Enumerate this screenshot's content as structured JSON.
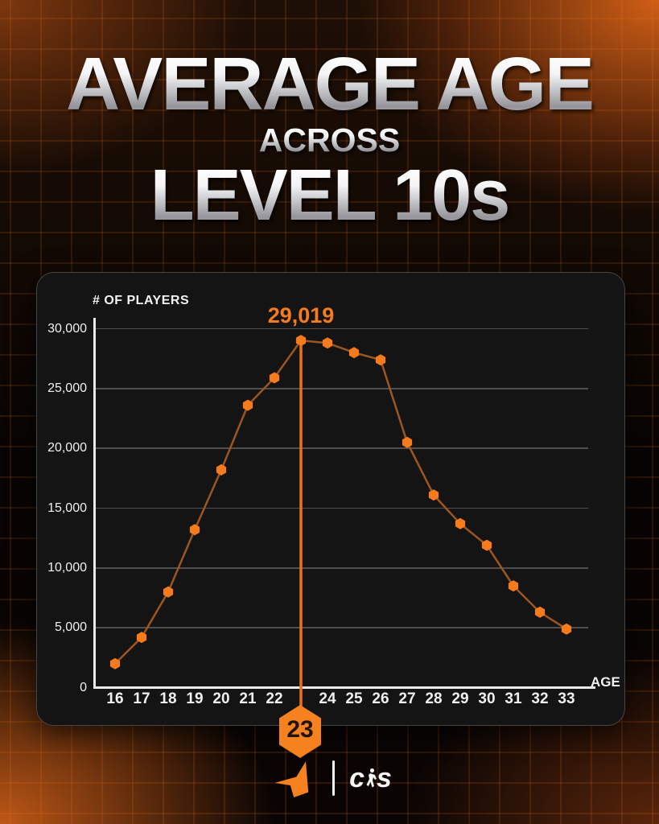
{
  "header": {
    "line1": "AVERAGE AGE",
    "line2": "ACROSS",
    "line3": "LEVEL 10s"
  },
  "chart_data": {
    "type": "line",
    "title": "Average age across Level 10s",
    "ylabel": "# OF PLAYERS",
    "xlabel": "AGE",
    "x": [
      16,
      17,
      18,
      19,
      20,
      21,
      22,
      23,
      24,
      25,
      26,
      27,
      28,
      29,
      30,
      31,
      32,
      33
    ],
    "xtick_labels": [
      "16",
      "17",
      "18",
      "19",
      "20",
      "21",
      "22",
      "",
      "24",
      "25",
      "26",
      "27",
      "28",
      "29",
      "30",
      "31",
      "32",
      "33"
    ],
    "values": [
      2000,
      4200,
      8000,
      13200,
      18200,
      23600,
      25900,
      29019,
      28800,
      28000,
      27400,
      20500,
      16100,
      13700,
      11900,
      8500,
      6300,
      4900
    ],
    "ylim": [
      0,
      30000
    ],
    "yticks": [
      0,
      5000,
      10000,
      15000,
      20000,
      25000,
      30000
    ],
    "ytick_labels": [
      "0",
      "5,000",
      "10,000",
      "15,000",
      "20,000",
      "25,000",
      "30,000"
    ],
    "grid": "horizontal",
    "legend": "none",
    "peak": {
      "age": 23,
      "value": 29019,
      "label": "29,019",
      "badge": "23"
    },
    "colors": {
      "accent": "#f5821f",
      "annotation": "#f57b1c",
      "line": "#9c5621",
      "point": "#f57b1c",
      "drop_line": "#e8731d",
      "grid_line": "#4f4f4f",
      "axis": "#e9e9e9",
      "panel_bg": "#151414"
    }
  },
  "footer": {
    "divider": "|",
    "cs_left": "c",
    "cs_right": "s"
  }
}
